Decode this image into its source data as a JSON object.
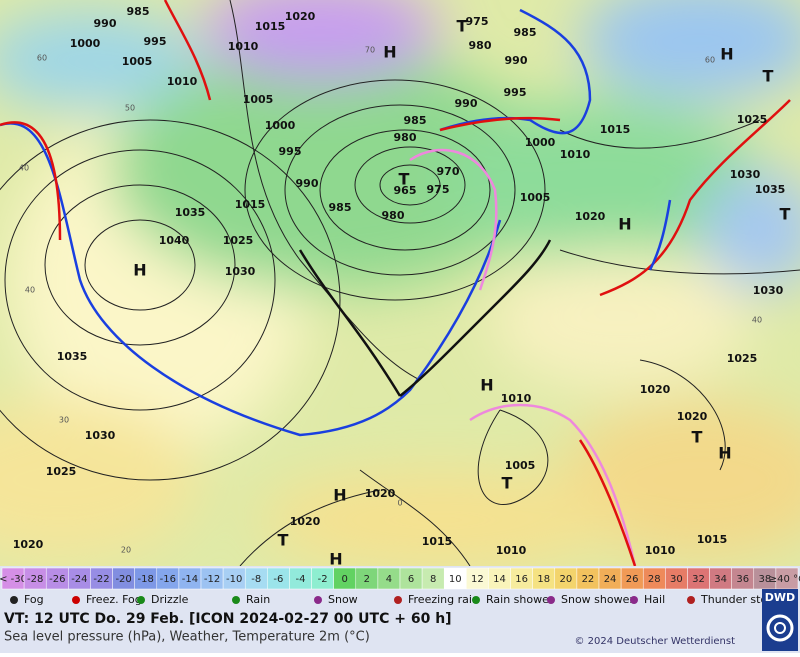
{
  "map": {
    "isobar_labels": [
      985,
      990,
      1000,
      995,
      1005,
      1010,
      1015,
      1020,
      1010,
      1005,
      1000,
      995,
      990,
      985,
      980,
      965,
      975,
      970,
      980,
      985,
      990,
      995,
      1000,
      1005,
      1010,
      1015,
      975,
      980,
      985,
      990,
      1020,
      1025,
      1030,
      1035,
      1030,
      1025,
      1020,
      1020,
      1015,
      1010,
      1010,
      1015,
      1020,
      1020,
      1010,
      1005,
      1025,
      1030,
      1035,
      1040,
      1035,
      1030,
      1025,
      1015,
      1020
    ],
    "centers": [
      "H",
      "H",
      "H",
      "H",
      "H",
      "H",
      "H",
      "H",
      "T",
      "T",
      "T",
      "T",
      "T",
      "T",
      "T"
    ],
    "grid_labels": [
      "60",
      "50",
      "40",
      "40",
      "30",
      "20",
      "70",
      "60",
      "40",
      "0"
    ],
    "color_scale": [
      {
        "label": "< -30",
        "color": "#d58fe6"
      },
      {
        "label": "-28",
        "color": "#c78ee6"
      },
      {
        "label": "-26",
        "color": "#b88de6"
      },
      {
        "label": "-24",
        "color": "#a88de6"
      },
      {
        "label": "-22",
        "color": "#978de4"
      },
      {
        "label": "-20",
        "color": "#818ee0"
      },
      {
        "label": "-18",
        "color": "#7d98e6"
      },
      {
        "label": "-16",
        "color": "#84a6ec"
      },
      {
        "label": "-14",
        "color": "#8fb4f0"
      },
      {
        "label": "-12",
        "color": "#9cc2f2"
      },
      {
        "label": "-10",
        "color": "#a8cff4"
      },
      {
        "label": "-8",
        "color": "#a6dcf2"
      },
      {
        "label": "-6",
        "color": "#9be4ea"
      },
      {
        "label": "-4",
        "color": "#92eadb"
      },
      {
        "label": "-2",
        "color": "#8eeed0"
      },
      {
        "label": "0",
        "color": "#62d262"
      },
      {
        "label": "2",
        "color": "#7ed67a"
      },
      {
        "label": "4",
        "color": "#95dc8a"
      },
      {
        "label": "6",
        "color": "#aee39c"
      },
      {
        "label": "8",
        "color": "#c7ebb0"
      },
      {
        "label": "10",
        "color": "#ffffff"
      },
      {
        "label": "12",
        "color": "#fbf9d4"
      },
      {
        "label": "14",
        "color": "#f9f4ba"
      },
      {
        "label": "16",
        "color": "#f7ec9e"
      },
      {
        "label": "18",
        "color": "#f5e282"
      },
      {
        "label": "20",
        "color": "#f3d46c"
      },
      {
        "label": "22",
        "color": "#f2c25e"
      },
      {
        "label": "24",
        "color": "#f1ae58"
      },
      {
        "label": "26",
        "color": "#f09a56"
      },
      {
        "label": "28",
        "color": "#ee8a5a"
      },
      {
        "label": "30",
        "color": "#e67c66"
      },
      {
        "label": "32",
        "color": "#dc7474"
      },
      {
        "label": "34",
        "color": "#d07a82"
      },
      {
        "label": "36",
        "color": "#c48690"
      },
      {
        "label": "38",
        "color": "#b8909a"
      },
      {
        "label": "≥40 °C",
        "color": "#c89ca4"
      }
    ],
    "weather_legend": [
      "Fog",
      "Freez. Fog",
      "Drizzle",
      "Rain",
      "Snow",
      "Freezing rain",
      "Rain shower",
      "Snow shower",
      "Hail",
      "Thunder storm"
    ],
    "valid_time": "VT: 12 UTC Do.  29 Feb. [ICON 2024-02-27  00 UTC + 60 h]",
    "subtitle": "Sea level pressure (hPa), Weather, Temperature 2m (°C)",
    "copyright": "© 2024 Deutscher Wetterdienst",
    "logo": "DWD"
  }
}
